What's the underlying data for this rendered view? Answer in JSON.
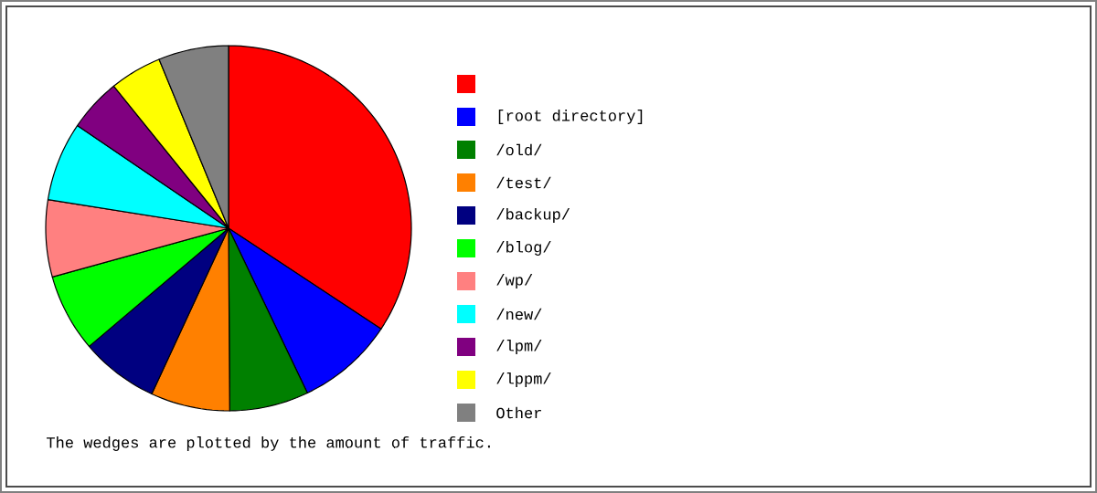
{
  "chart_data": {
    "type": "pie",
    "categories": [
      null,
      "[root directory]",
      "/old/",
      "/test/",
      "/backup/",
      "/blog/",
      "/wp/",
      "/new/",
      "/lpm/",
      "/lppm/",
      "Other"
    ],
    "values": [
      34.3,
      8.6,
      7.0,
      7.0,
      6.9,
      6.9,
      6.8,
      7.0,
      4.7,
      4.6,
      6.2
    ],
    "colors": [
      "#ff0000",
      "#0000ff",
      "#008000",
      "#ff8000",
      "#000080",
      "#00ff00",
      "#ff8080",
      "#00ffff",
      "#800080",
      "#ffff00",
      "#808080"
    ],
    "legend": "right",
    "annotations": [
      "The wedges are plotted by the amount of traffic."
    ]
  }
}
